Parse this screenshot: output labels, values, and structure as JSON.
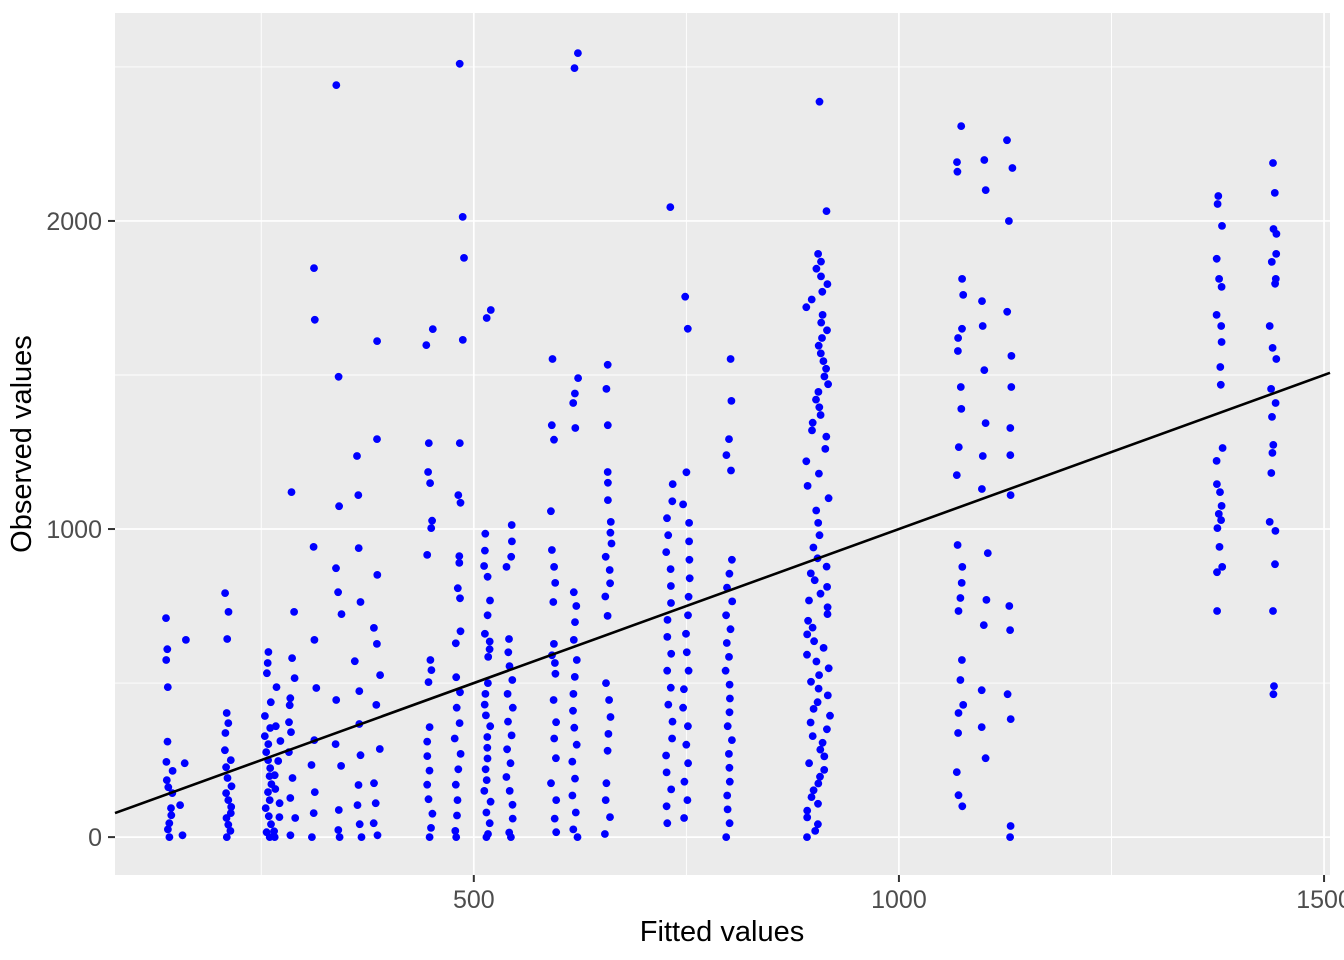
{
  "chart_data": {
    "type": "scatter",
    "title": "",
    "xlabel": "Fitted values",
    "ylabel": "Observed values",
    "xlim": [
      78,
      1507
    ],
    "ylim": [
      -123,
      2675
    ],
    "grid": "on",
    "legend": "none",
    "colors": {
      "point": "#0000ff",
      "line": "#000000",
      "panel_bg": "#ebebeb",
      "grid": "#ffffff",
      "tick_label": "#4d4d4d",
      "axis_title": "#000000"
    },
    "x_axis": {
      "title": "Fitted values",
      "ticks": [
        {
          "v": 500,
          "label": "500"
        },
        {
          "v": 1000,
          "label": "1000"
        },
        {
          "v": 1500,
          "label": "1500"
        }
      ],
      "minor": [
        250,
        750,
        1250
      ]
    },
    "y_axis": {
      "title": "Observed values",
      "ticks": [
        {
          "v": 0,
          "label": "0"
        },
        {
          "v": 1000,
          "label": "1000"
        },
        {
          "v": 2000,
          "label": "2000"
        }
      ],
      "minor": [
        500,
        1500,
        2500
      ]
    },
    "reference_line": {
      "type": "identity",
      "slope": 1,
      "intercept": 0
    },
    "series": [
      {
        "name": "observations",
        "bands": [
          {
            "fitted": 142,
            "observed": [
              711,
              610,
              575,
              487,
              310,
              244,
              215,
              185,
              162,
              143,
              94,
              71,
              45,
              25,
              0
            ]
          },
          {
            "fitted": 158,
            "observed": [
              640,
              240,
              104,
              6
            ]
          },
          {
            "fitted": 211,
            "observed": [
              792,
              731,
              643,
              403,
              370,
              338,
              282,
              250,
              227,
              192,
              165,
              143,
              120,
              98,
              78,
              62,
              40,
              20,
              0
            ]
          },
          {
            "fitted": 258,
            "observed": [
              601,
              565,
              532,
              438,
              393,
              354,
              328,
              302,
              276,
              250,
              224,
              198,
              172,
              146,
              120,
              94,
              68,
              42,
              16,
              0
            ]
          },
          {
            "fitted": 269,
            "observed": [
              487,
              360,
              312,
              247,
              201,
              156,
              110,
              65,
              19,
              0
            ]
          },
          {
            "fitted": 286,
            "observed": [
              1120,
              731,
              581,
              516,
              451,
              428,
              373,
              341,
              276,
              192,
              127,
              62,
              6
            ]
          },
          {
            "fitted": 311,
            "observed": [
              1847,
              1679,
              942,
              640,
              484,
              315,
              234,
              146,
              78,
              0
            ]
          },
          {
            "fitted": 341,
            "observed": [
              2441,
              1494,
              1074,
              873,
              795,
              724,
              445,
              302,
              231,
              88,
              23,
              0
            ]
          },
          {
            "fitted": 364,
            "observed": [
              1237,
              1110,
              938,
              763,
              571,
              474,
              367,
              266,
              169,
              104,
              42,
              0
            ]
          },
          {
            "fitted": 386,
            "observed": [
              1610,
              1292,
              851,
              679,
              627,
              526,
              429,
              286,
              175,
              110,
              45,
              6
            ]
          },
          {
            "fitted": 448,
            "observed": [
              1649,
              1597,
              1279,
              1185,
              1149,
              1027,
              1003,
              916,
              575,
              542,
              503,
              357,
              310,
              263,
              216,
              170,
              123,
              76,
              30,
              0
            ]
          },
          {
            "fitted": 481,
            "observed": [
              1279,
              1110,
              1085,
              912,
              890,
              808,
              775,
              668,
              629,
              519,
              470,
              420,
              370,
              320,
              270,
              220,
              170,
              120,
              70,
              20,
              0
            ]
          },
          {
            "fitted": 486,
            "observed": [
              2510,
              2013,
              1880,
              1614
            ]
          },
          {
            "fitted": 516,
            "observed": [
              1711,
              1685,
              985,
              930,
              880,
              845,
              768,
              720,
              660,
              635,
              610,
              585,
              500,
              465,
              430,
              395,
              360,
              325,
              290,
              255,
              220,
              185,
              150,
              115,
              80,
              45,
              10,
              0
            ]
          },
          {
            "fitted": 542,
            "observed": [
              1013,
              960,
              910,
              877,
              643,
              600,
              555,
              510,
              465,
              420,
              375,
              330,
              285,
              240,
              195,
              150,
              105,
              60,
              15,
              0
            ]
          },
          {
            "fitted": 593,
            "observed": [
              1552,
              1337,
              1290,
              1058,
              932,
              877,
              825,
              763,
              627,
              590,
              565,
              530,
              445,
              373,
              320,
              256,
              175,
              120,
              60,
              16
            ]
          },
          {
            "fitted": 619,
            "observed": [
              2545,
              2496,
              1490,
              1440,
              1409,
              1328,
              795,
              750,
              698,
              640,
              575,
              520,
              465,
              410,
              355,
              300,
              245,
              190,
              135,
              80,
              25,
              0
            ]
          },
          {
            "fitted": 658,
            "observed": [
              1533,
              1455,
              1337,
              1185,
              1150,
              1094,
              1023,
              988,
              953,
              910,
              867,
              824,
              781,
              718,
              500,
              445,
              390,
              335,
              280,
              175,
              120,
              65,
              10
            ]
          },
          {
            "fitted": 730,
            "observed": [
              2045,
              1146,
              1090,
              1035,
              980,
              925,
              870,
              815,
              760,
              705,
              650,
              595,
              540,
              485,
              430,
              375,
              320,
              265,
              210,
              155,
              100,
              45
            ]
          },
          {
            "fitted": 750,
            "observed": [
              1754,
              1650,
              1184,
              1080,
              1020,
              960,
              900,
              840,
              780,
              720,
              660,
              600,
              540,
              480,
              420,
              360,
              300,
              240,
              180,
              120,
              62
            ]
          },
          {
            "fitted": 800,
            "observed": [
              1552,
              1416,
              1292,
              1240,
              1190,
              900,
              855,
              810,
              765,
              720,
              675,
              630,
              585,
              540,
              495,
              450,
              405,
              360,
              315,
              270,
              225,
              180,
              135,
              90,
              45,
              0
            ]
          },
          {
            "fitted": 905,
            "spread": 28,
            "observed": [
              2387,
              2032,
              1893,
              1868,
              1845,
              1820,
              1795,
              1770,
              1745,
              1720,
              1695,
              1670,
              1645,
              1620,
              1595,
              1570,
              1545,
              1520,
              1495,
              1470,
              1445,
              1420,
              1395,
              1370,
              1345,
              1320,
              1300,
              1260,
              1220,
              1180,
              1140,
              1100,
              1060,
              1020,
              980,
              940,
              905,
              878,
              856,
              834,
              812,
              790,
              768,
              746,
              724,
              702,
              680,
              658,
              636,
              614,
              592,
              570,
              548,
              526,
              504,
              482,
              460,
              438,
              416,
              394,
              372,
              350,
              328,
              306,
              284,
              262,
              240,
              218,
              196,
              174,
              152,
              130,
              108,
              86,
              64,
              42,
              20,
              0
            ]
          },
          {
            "fitted": 1072,
            "observed": [
              2308,
              2191,
              2160,
              1812,
              1760,
              1650,
              1620,
              1578,
              1461,
              1390,
              1266,
              1175,
              948,
              877,
              825,
              776,
              734,
              575,
              510,
              429,
              403,
              338,
              211,
              136,
              100
            ]
          },
          {
            "fitted": 1101,
            "observed": [
              2198,
              2100,
              1740,
              1659,
              1516,
              1344,
              1237,
              1130,
              922,
              770,
              688,
              477,
              357,
              256
            ]
          },
          {
            "fitted": 1130,
            "observed": [
              2262,
              2172,
              2000,
              1705,
              1562,
              1461,
              1328,
              1240,
              1110,
              750,
              672,
              464,
              383,
              36,
              0
            ]
          },
          {
            "fitted": 1377,
            "observed": [
              2081,
              2055,
              1984,
              1877,
              1812,
              1786,
              1695,
              1659,
              1607,
              1526,
              1468,
              1263,
              1221,
              1146,
              1120,
              1075,
              1049,
              1029,
              1003,
              942,
              877,
              860,
              734
            ]
          },
          {
            "fitted": 1440,
            "observed": [
              2188,
              2091,
              1974,
              1958,
              1893,
              1867,
              1812,
              1796,
              1659,
              1588,
              1552,
              1455,
              1409,
              1364,
              1273,
              1247,
              1182,
              1023,
              994,
              886,
              734,
              490,
              464
            ]
          }
        ]
      }
    ]
  }
}
